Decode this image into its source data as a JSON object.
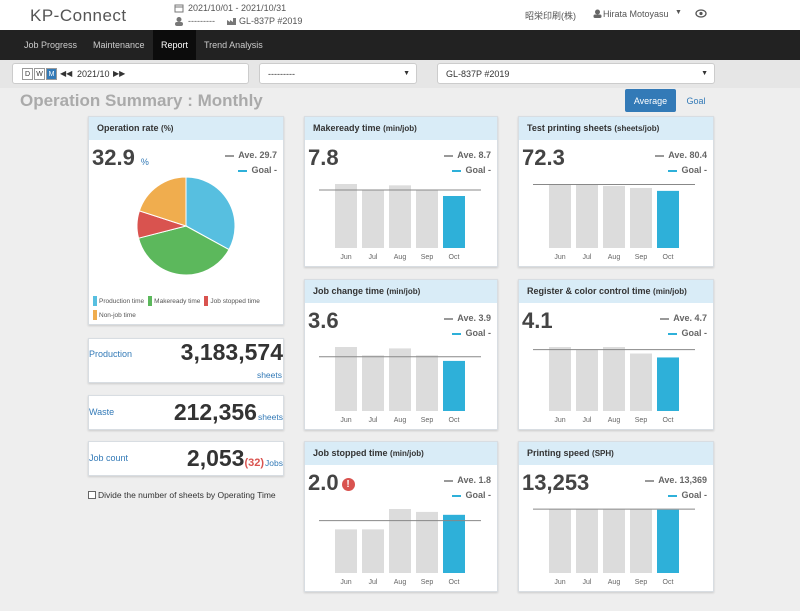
{
  "header": {
    "logo": "KP-Connect",
    "period": "2021/10/01 - 2021/10/31",
    "operator": "---------",
    "machine": "GL-837P #2019",
    "company": "昭栄印刷(株)",
    "user": "Hirata Motoyasu"
  },
  "nav": {
    "tabs": [
      "Job Progress",
      "Maintenance",
      "Report",
      "Trend Analysis"
    ],
    "active": 2
  },
  "toolbar": {
    "modes": [
      "D",
      "W",
      "M"
    ],
    "month": "2021/10",
    "select1": "---------",
    "select2": "GL-837P #2019"
  },
  "title": "Operation Summary : Monthly",
  "toggles": [
    "Average",
    "Goal"
  ],
  "stats": [
    {
      "label": "Production",
      "value": "3,183,574",
      "unit": "sheets"
    },
    {
      "label": "Waste",
      "value": "212,356",
      "unit": "sheets"
    },
    {
      "label": "Job count",
      "value": "2,053",
      "extra": "(32)",
      "unit": "Jobs"
    }
  ],
  "checkbox": "Divide the number of sheets by Operating Time",
  "chart_data": [
    {
      "type": "pie",
      "title": "Operation rate",
      "unit": "(%)",
      "value": "32.9",
      "value_unit": "%",
      "ave_label": "Ave.",
      "average": 29.7,
      "goal_label": "Goal",
      "goal": "-",
      "categories": [
        "Production time",
        "Makeready time",
        "Job stopped time",
        "Non-job time"
      ],
      "values": [
        33,
        38,
        9,
        20
      ],
      "colors": [
        "#57bfe0",
        "#5cb85c",
        "#d9534f",
        "#f0ad4e"
      ]
    },
    {
      "type": "bar",
      "title": "Makeready time",
      "unit": "(min/job)",
      "value": "7.8",
      "ave_label": "Ave.",
      "average": 8.7,
      "goal_label": "Goal",
      "goal": "-",
      "categories": [
        "Jun",
        "Jul",
        "Aug",
        "Sep",
        "Oct"
      ],
      "values": [
        9.6,
        8.7,
        9.4,
        8.7,
        7.8
      ],
      "colors": [
        "#dcdcdc",
        "#dcdcdc",
        "#dcdcdc",
        "#dcdcdc",
        "#2eb0d9"
      ]
    },
    {
      "type": "bar",
      "title": "Test printing sheets",
      "unit": "(sheets/job)",
      "value": "72.3",
      "ave_label": "Ave.",
      "average": 80.4,
      "goal_label": "Goal",
      "goal": "-",
      "categories": [
        "Jun",
        "Jul",
        "Aug",
        "Sep",
        "Oct"
      ],
      "values": [
        81,
        80,
        78.5,
        76,
        72.3
      ],
      "colors": [
        "#dcdcdc",
        "#dcdcdc",
        "#dcdcdc",
        "#dcdcdc",
        "#2eb0d9"
      ]
    },
    {
      "type": "bar",
      "title": "Job change time",
      "unit": "(min/job)",
      "value": "3.6",
      "ave_label": "Ave.",
      "average": 3.9,
      "goal_label": "Goal",
      "goal": "-",
      "categories": [
        "Jun",
        "Jul",
        "Aug",
        "Sep",
        "Oct"
      ],
      "values": [
        4.6,
        4.0,
        4.5,
        4.0,
        3.6
      ],
      "colors": [
        "#dcdcdc",
        "#dcdcdc",
        "#dcdcdc",
        "#dcdcdc",
        "#2eb0d9"
      ]
    },
    {
      "type": "bar",
      "title": "Register & color control time",
      "unit": "(min/job)",
      "value": "4.1",
      "ave_label": "Ave.",
      "average": 4.7,
      "goal_label": "Goal",
      "goal": "-",
      "categories": [
        "Jun",
        "Jul",
        "Aug",
        "Sep",
        "Oct"
      ],
      "values": [
        4.9,
        4.7,
        4.9,
        4.4,
        4.1
      ],
      "colors": [
        "#dcdcdc",
        "#dcdcdc",
        "#dcdcdc",
        "#dcdcdc",
        "#2eb0d9"
      ]
    },
    {
      "type": "bar",
      "title": "Job stopped time",
      "unit": "(min/job)",
      "value": "2.0",
      "alert": true,
      "ave_label": "Ave.",
      "average": 1.8,
      "goal_label": "Goal",
      "goal": "-",
      "categories": [
        "Jun",
        "Jul",
        "Aug",
        "Sep",
        "Oct"
      ],
      "values": [
        1.5,
        1.5,
        2.2,
        2.1,
        2.0
      ],
      "colors": [
        "#dcdcdc",
        "#dcdcdc",
        "#dcdcdc",
        "#dcdcdc",
        "#2eb0d9"
      ]
    },
    {
      "type": "bar",
      "title": "Printing speed",
      "unit": "(SPH)",
      "value": "13,253",
      "ave_label": "Ave.",
      "average": 13369,
      "average_label": "13,369",
      "goal_label": "Goal",
      "goal": "-",
      "categories": [
        "Jun",
        "Jul",
        "Aug",
        "Sep",
        "Oct"
      ],
      "values": [
        13400,
        13400,
        13400,
        13300,
        13253
      ],
      "colors": [
        "#dcdcdc",
        "#dcdcdc",
        "#dcdcdc",
        "#dcdcdc",
        "#2eb0d9"
      ]
    }
  ]
}
